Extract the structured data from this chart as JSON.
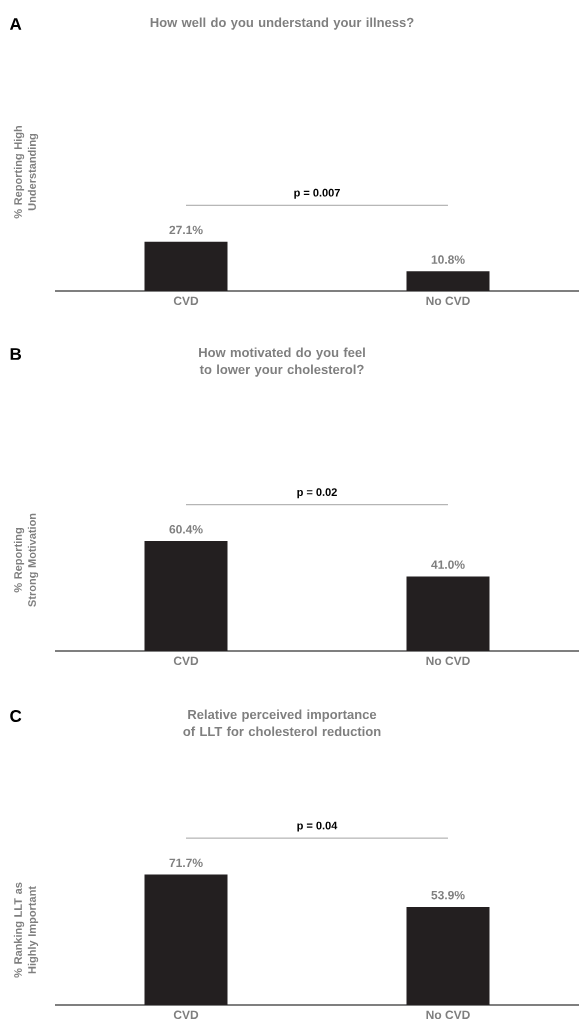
{
  "chart_data": [
    {
      "type": "bar",
      "title": "How well do you understand your illness?",
      "ylabel": "% Reporting High Understanding",
      "categories": [
        "CVD",
        "No CVD"
      ],
      "values": [
        27.1,
        10.8
      ],
      "value_labels": [
        "27.1%",
        "10.8%"
      ],
      "color": "#231f20",
      "annotations": [
        "A",
        "p = 0.007"
      ]
    },
    {
      "type": "bar",
      "title": "How motivated do you feel to lower your cholesterol?",
      "ylabel": "% Reporting Strong Motivation",
      "categories": [
        "CVD",
        "No CVD"
      ],
      "values": [
        60.4,
        41.0
      ],
      "value_labels": [
        "60.4%",
        "41.0%"
      ],
      "color": "#231f20",
      "annotations": [
        "B",
        "p = 0.02"
      ]
    },
    {
      "type": "bar",
      "title": "Relative perceived importance of LLT for cholesterol reduction",
      "ylabel": "% Ranking LLT as Highly Important",
      "categories": [
        "CVD",
        "No CVD"
      ],
      "values": [
        71.7,
        53.9
      ],
      "value_labels": [
        "71.7%",
        "53.9%"
      ],
      "color": "#231f20",
      "annotations": [
        "C",
        "p = 0.04"
      ]
    }
  ]
}
